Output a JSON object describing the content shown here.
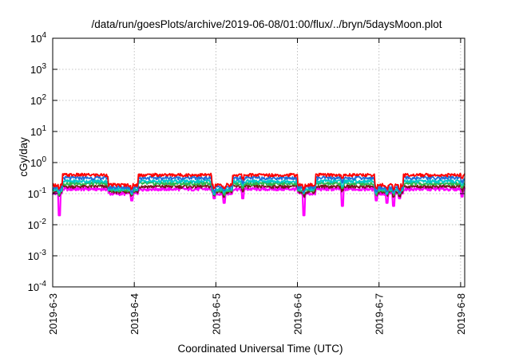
{
  "chart_data": {
    "type": "line",
    "title": "/data/run/goesPlots/archive/2019-06-08/01:00/flux/../bryn/5daysMoon.plot",
    "xlabel": "Coordinated Universal Time (UTC)",
    "ylabel": "cGy/day",
    "yscale": "log",
    "ylim": [
      0.0001,
      10000
    ],
    "y_ticks": [
      {
        "value": 0.0001,
        "base": "10",
        "exp": "-4"
      },
      {
        "value": 0.001,
        "base": "10",
        "exp": "-3"
      },
      {
        "value": 0.01,
        "base": "10",
        "exp": "-2"
      },
      {
        "value": 0.1,
        "base": "10",
        "exp": "-1"
      },
      {
        "value": 1,
        "base": "10",
        "exp": "0"
      },
      {
        "value": 10,
        "base": "10",
        "exp": "1"
      },
      {
        "value": 100,
        "base": "10",
        "exp": "2"
      },
      {
        "value": 1000,
        "base": "10",
        "exp": "3"
      },
      {
        "value": 10000,
        "base": "10",
        "exp": "4"
      }
    ],
    "x_range_days": [
      0,
      5.05
    ],
    "x_ticks": [
      {
        "day": 0,
        "label": "2019-6-3"
      },
      {
        "day": 1,
        "label": "2019-6-4"
      },
      {
        "day": 2,
        "label": "2019-6-5"
      },
      {
        "day": 3,
        "label": "2019-6-6"
      },
      {
        "day": 4,
        "label": "2019-6-7"
      },
      {
        "day": 5,
        "label": "2019-6-8"
      }
    ],
    "grid": true,
    "colors": {
      "red": "#ff0000",
      "blue": "#1f6fd9",
      "cyan": "#00c8c8",
      "green": "#2db84a",
      "dark": "#7a1420",
      "magenta": "#ff00ff"
    },
    "day_segments": [
      {
        "start": 0.0,
        "end": 0.05,
        "level": "low"
      },
      {
        "start": 0.05,
        "end": 0.07,
        "level": "dip"
      },
      {
        "start": 0.07,
        "end": 0.12,
        "level": "low"
      },
      {
        "start": 0.12,
        "end": 0.68,
        "level": "high"
      },
      {
        "start": 0.68,
        "end": 1.05,
        "level": "low"
      },
      {
        "start": 1.05,
        "end": 1.3,
        "level": "high"
      },
      {
        "start": 1.3,
        "end": 1.95,
        "level": "high"
      },
      {
        "start": 1.95,
        "end": 2.2,
        "level": "low"
      },
      {
        "start": 2.2,
        "end": 3.0,
        "level": "high"
      },
      {
        "start": 3.0,
        "end": 3.22,
        "level": "low"
      },
      {
        "start": 3.22,
        "end": 3.95,
        "level": "high"
      },
      {
        "start": 3.95,
        "end": 4.3,
        "level": "low"
      },
      {
        "start": 4.3,
        "end": 5.05,
        "level": "high"
      }
    ],
    "levels": {
      "high": {
        "red": 0.4,
        "blue": 0.32,
        "cyan": 0.25,
        "green": 0.21,
        "dark": 0.17,
        "magenta": 0.14
      },
      "low": {
        "red": 0.19,
        "blue": 0.16,
        "cyan": 0.14,
        "green": 0.13,
        "dark": 0.115,
        "magenta": 0.1
      }
    },
    "dips": [
      {
        "day": 0.08,
        "magenta": 0.02
      },
      {
        "day": 0.97,
        "magenta": 0.06
      },
      {
        "day": 1.98,
        "magenta": 0.07
      },
      {
        "day": 2.1,
        "magenta": 0.05
      },
      {
        "day": 2.33,
        "magenta": 0.07
      },
      {
        "day": 3.08,
        "magenta": 0.02
      },
      {
        "day": 3.55,
        "magenta": 0.04
      },
      {
        "day": 3.97,
        "magenta": 0.06
      },
      {
        "day": 4.1,
        "magenta": 0.05
      },
      {
        "day": 4.18,
        "magenta": 0.04
      },
      {
        "day": 4.25,
        "magenta": 0.07
      },
      {
        "day": 5.02,
        "magenta": 0.08
      }
    ]
  }
}
